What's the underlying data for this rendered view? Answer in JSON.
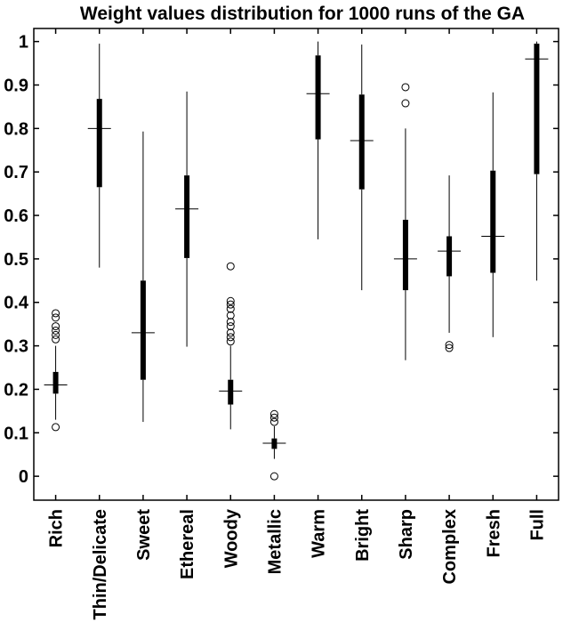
{
  "chart_data": {
    "type": "box",
    "title": "Weight values distribution for 1000 runs of the GA",
    "xlabel": "",
    "ylabel": "",
    "ylim": [
      -0.055,
      1.03
    ],
    "yticks": [
      0,
      0.1,
      0.2,
      0.3,
      0.4,
      0.5,
      0.6,
      0.7,
      0.8,
      0.9,
      1
    ],
    "ytick_labels": [
      "0",
      "0.1",
      "0.2",
      "0.3",
      "0.4",
      "0.5",
      "0.6",
      "0.7",
      "0.8",
      "0.9",
      "1"
    ],
    "grid": false,
    "categories": [
      "Rich",
      "Thin/Delicate",
      "Sweet",
      "Ethereal",
      "Woody",
      "Metallic",
      "Warm",
      "Bright",
      "Sharp",
      "Complex",
      "Fresh",
      "Full"
    ],
    "boxes": [
      {
        "category": "Rich",
        "whisker_low": 0.13,
        "q1": 0.19,
        "median": 0.21,
        "q3": 0.24,
        "whisker_high": 0.3,
        "outliers": [
          0.113,
          0.315,
          0.325,
          0.335,
          0.345,
          0.365,
          0.375
        ]
      },
      {
        "category": "Thin/Delicate",
        "whisker_low": 0.48,
        "q1": 0.665,
        "median": 0.8,
        "q3": 0.868,
        "whisker_high": 0.995,
        "outliers": []
      },
      {
        "category": "Sweet",
        "whisker_low": 0.125,
        "q1": 0.222,
        "median": 0.33,
        "q3": 0.45,
        "whisker_high": 0.793,
        "outliers": []
      },
      {
        "category": "Ethereal",
        "whisker_low": 0.298,
        "q1": 0.502,
        "median": 0.615,
        "q3": 0.692,
        "whisker_high": 0.885,
        "outliers": []
      },
      {
        "category": "Woody",
        "whisker_low": 0.108,
        "q1": 0.165,
        "median": 0.196,
        "q3": 0.222,
        "whisker_high": 0.3,
        "outliers": [
          0.31,
          0.32,
          0.33,
          0.345,
          0.355,
          0.37,
          0.385,
          0.395,
          0.403,
          0.483
        ]
      },
      {
        "category": "Metallic",
        "whisker_low": 0.04,
        "q1": 0.063,
        "median": 0.076,
        "q3": 0.087,
        "whisker_high": 0.115,
        "outliers": [
          0.0,
          0.125,
          0.135,
          0.143
        ]
      },
      {
        "category": "Warm",
        "whisker_low": 0.545,
        "q1": 0.775,
        "median": 0.88,
        "q3": 0.968,
        "whisker_high": 1.0,
        "outliers": []
      },
      {
        "category": "Bright",
        "whisker_low": 0.428,
        "q1": 0.66,
        "median": 0.772,
        "q3": 0.878,
        "whisker_high": 0.993,
        "outliers": []
      },
      {
        "category": "Sharp",
        "whisker_low": 0.267,
        "q1": 0.428,
        "median": 0.5,
        "q3": 0.59,
        "whisker_high": 0.8,
        "outliers": [
          0.858,
          0.895
        ]
      },
      {
        "category": "Complex",
        "whisker_low": 0.33,
        "q1": 0.46,
        "median": 0.518,
        "q3": 0.552,
        "whisker_high": 0.692,
        "outliers": [
          0.295,
          0.302
        ]
      },
      {
        "category": "Fresh",
        "whisker_low": 0.32,
        "q1": 0.468,
        "median": 0.552,
        "q3": 0.703,
        "whisker_high": 0.883,
        "outliers": []
      },
      {
        "category": "Full",
        "whisker_low": 0.45,
        "q1": 0.695,
        "median": 0.96,
        "q3": 0.995,
        "whisker_high": 1.0,
        "outliers": []
      }
    ]
  }
}
